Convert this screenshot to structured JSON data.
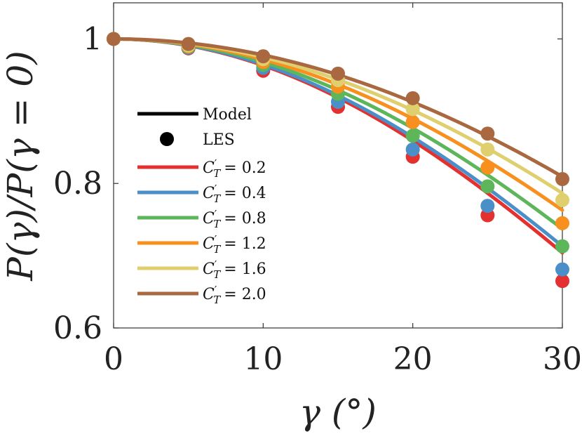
{
  "chart_data": {
    "type": "line",
    "title": "",
    "xlabel": "γ (°)",
    "ylabel": "P(γ)/P(γ = 0)",
    "xlim": [
      0,
      30
    ],
    "ylim": [
      0.6,
      1.05
    ],
    "xticks": [
      0,
      10,
      20,
      30
    ],
    "xtick_labels": [
      "0",
      "10",
      "20",
      "30"
    ],
    "yticks": [
      0.6,
      0.8,
      1.0
    ],
    "ytick_labels": [
      "0.6",
      "0.8",
      "1"
    ],
    "grid": false,
    "legend_position": "left",
    "legend_style_entries": [
      {
        "label": "Model",
        "kind": "line"
      },
      {
        "label": "LES",
        "kind": "marker"
      }
    ],
    "les_x": [
      0,
      5,
      10,
      15,
      20,
      25,
      30
    ],
    "series": [
      {
        "name": "C′_T = 0.2",
        "color": "#e4312f",
        "model_exponent": 2.44,
        "les_values": [
          1.0,
          0.987,
          0.956,
          0.906,
          0.837,
          0.756,
          0.665
        ]
      },
      {
        "name": "C′_T = 0.4",
        "color": "#4b8fc8",
        "model_exponent": 2.35,
        "les_values": [
          1.0,
          0.988,
          0.96,
          0.913,
          0.847,
          0.769,
          0.681
        ]
      },
      {
        "name": "C′_T = 0.8",
        "color": "#5db65a",
        "model_exponent": 2.12,
        "les_values": [
          1.0,
          0.989,
          0.964,
          0.924,
          0.866,
          0.796,
          0.713
        ]
      },
      {
        "name": "C′_T = 1.2",
        "color": "#f7901e",
        "model_exponent": 1.88,
        "les_values": [
          1.0,
          0.99,
          0.968,
          0.934,
          0.885,
          0.822,
          0.745
        ]
      },
      {
        "name": "C′_T = 1.6",
        "color": "#dfcf6e",
        "model_exponent": 1.67,
        "les_values": [
          1.0,
          0.991,
          0.972,
          0.943,
          0.903,
          0.847,
          0.777
        ]
      },
      {
        "name": "C′_T = 2.0",
        "color": "#a9683f",
        "model_exponent": 1.47,
        "les_values": [
          1.0,
          0.993,
          0.976,
          0.952,
          0.918,
          0.869,
          0.806
        ]
      }
    ]
  },
  "legend": {
    "model_label": "Model",
    "les_label": "LES",
    "ct_prefix_main": "C",
    "ct_prefix_sub": "T",
    "ct_entries": [
      "= 0.2",
      "= 0.4",
      "= 0.8",
      "= 1.2",
      "= 1.6",
      "= 2.0"
    ]
  }
}
